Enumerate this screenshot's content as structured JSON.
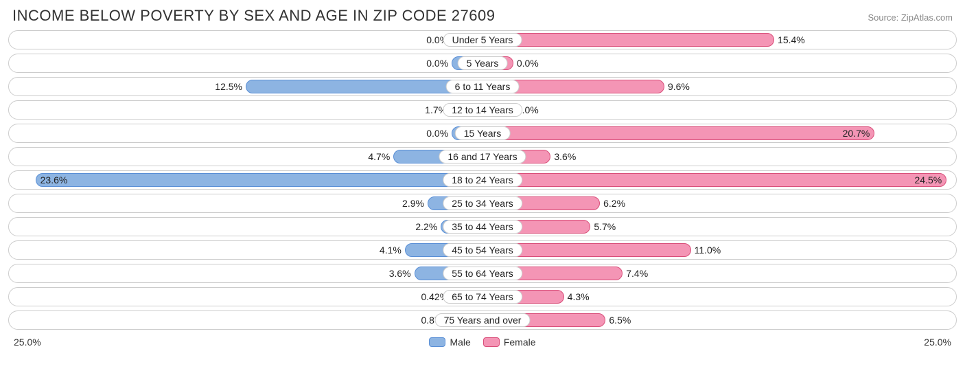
{
  "title": "INCOME BELOW POVERTY BY SEX AND AGE IN ZIP CODE 27609",
  "source": "Source: ZipAtlas.com",
  "chart": {
    "type": "diverging-bar",
    "axis_max": 25.0,
    "axis_label_left": "25.0%",
    "axis_label_right": "25.0%",
    "min_bar_pct": 6.5,
    "colors": {
      "male_fill": "#8db4e2",
      "male_border": "#5a8fd6",
      "female_fill": "#f495b5",
      "female_border": "#d94f7a",
      "track_border": "#cccccc",
      "background": "#ffffff",
      "text": "#222222"
    },
    "legend": [
      {
        "label": "Male",
        "fill": "#8db4e2",
        "border": "#5a8fd6"
      },
      {
        "label": "Female",
        "fill": "#f495b5",
        "border": "#d94f7a"
      }
    ],
    "rows": [
      {
        "category": "Under 5 Years",
        "male": 0.0,
        "male_label": "0.0%",
        "female": 15.4,
        "female_label": "15.4%"
      },
      {
        "category": "5 Years",
        "male": 0.0,
        "male_label": "0.0%",
        "female": 0.0,
        "female_label": "0.0%"
      },
      {
        "category": "6 to 11 Years",
        "male": 12.5,
        "male_label": "12.5%",
        "female": 9.6,
        "female_label": "9.6%"
      },
      {
        "category": "12 to 14 Years",
        "male": 1.7,
        "male_label": "1.7%",
        "female": 0.0,
        "female_label": "0.0%"
      },
      {
        "category": "15 Years",
        "male": 0.0,
        "male_label": "0.0%",
        "female": 20.7,
        "female_label": "20.7%"
      },
      {
        "category": "16 and 17 Years",
        "male": 4.7,
        "male_label": "4.7%",
        "female": 3.6,
        "female_label": "3.6%"
      },
      {
        "category": "18 to 24 Years",
        "male": 23.6,
        "male_label": "23.6%",
        "female": 24.5,
        "female_label": "24.5%"
      },
      {
        "category": "25 to 34 Years",
        "male": 2.9,
        "male_label": "2.9%",
        "female": 6.2,
        "female_label": "6.2%"
      },
      {
        "category": "35 to 44 Years",
        "male": 2.2,
        "male_label": "2.2%",
        "female": 5.7,
        "female_label": "5.7%"
      },
      {
        "category": "45 to 54 Years",
        "male": 4.1,
        "male_label": "4.1%",
        "female": 11.0,
        "female_label": "11.0%"
      },
      {
        "category": "55 to 64 Years",
        "male": 3.6,
        "male_label": "3.6%",
        "female": 7.4,
        "female_label": "7.4%"
      },
      {
        "category": "65 to 74 Years",
        "male": 0.42,
        "male_label": "0.42%",
        "female": 4.3,
        "female_label": "4.3%"
      },
      {
        "category": "75 Years and over",
        "male": 0.87,
        "male_label": "0.87%",
        "female": 6.5,
        "female_label": "6.5%"
      }
    ]
  }
}
